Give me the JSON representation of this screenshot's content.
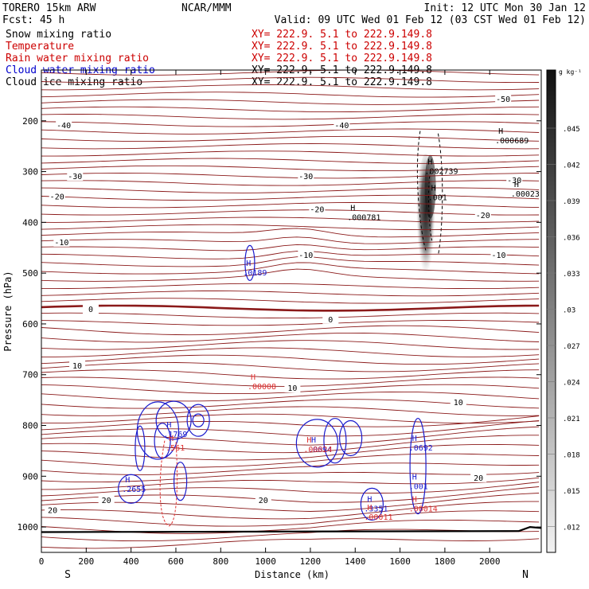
{
  "header": {
    "model": "TORERO   15km ARW",
    "center": "NCAR/MMM",
    "init": "Init: 12 UTC Mon 30 Jan 12",
    "fcst": "Fcst:    45 h",
    "valid": "Valid: 09 UTC Wed 01 Feb 12 (03 CST Wed 01 Feb 12)"
  },
  "fields": [
    {
      "name": "Snow mixing ratio",
      "xy": "XY= 222.9.  5.1 to 222.9.149.8",
      "color": "#000000",
      "xy_color": "#cc0000"
    },
    {
      "name": "Temperature",
      "xy": "XY= 222.9.  5.1 to 222.9.149.8",
      "color": "#cc0000",
      "xy_color": "#cc0000"
    },
    {
      "name": "Rain water mixing ratio",
      "xy": "XY= 222.9.  5.1 to 222.9.149.8",
      "color": "#cc0000",
      "xy_color": "#cc0000"
    },
    {
      "name": "Cloud water mixing ratio",
      "xy": "XY= 222.9.  5.1 to 222.9.149.8",
      "color": "#0000cc",
      "xy_color": "#000000"
    },
    {
      "name": "Cloud ice mixing ratio",
      "xy": "XY= 222.9.  5.1 to 222.9.149.8",
      "color": "#000000",
      "xy_color": "#000000"
    }
  ],
  "chart_data": {
    "type": "vertical-cross-section",
    "xlabel": "Distance (km)",
    "ylabel": "Pressure (hPa)",
    "xlim": [
      0,
      2230
    ],
    "ylim": [
      1050,
      100
    ],
    "x_ticks": [
      0,
      200,
      400,
      600,
      800,
      1000,
      1200,
      1400,
      1600,
      1800,
      2000
    ],
    "y_ticks": [
      200,
      300,
      400,
      500,
      600,
      700,
      800,
      900,
      1000
    ],
    "end_labels": {
      "left": "S",
      "right": "N"
    },
    "colorbar": {
      "unit": "g kg⁻¹",
      "labels": [
        ".045",
        ".042",
        ".039",
        ".036",
        ".033",
        ".03",
        ".027",
        ".024",
        ".021",
        ".018",
        ".015",
        ".012"
      ]
    },
    "temperature_contours": [
      {
        "label": "-50",
        "p": 158,
        "x": 2060
      },
      {
        "label": "-40",
        "p": 210,
        "x": 100
      },
      {
        "label": "-40",
        "p": 210,
        "x": 1340
      },
      {
        "label": "-30",
        "p": 310,
        "x": 150
      },
      {
        "label": "-30",
        "p": 310,
        "x": 1180
      },
      {
        "label": "-30",
        "p": 318,
        "x": 2110
      },
      {
        "label": "-20",
        "p": 350,
        "x": 70
      },
      {
        "label": "-20",
        "p": 375,
        "x": 1230
      },
      {
        "label": "-20",
        "p": 387,
        "x": 1970
      },
      {
        "label": "-10",
        "p": 440,
        "x": 90
      },
      {
        "label": "-10",
        "p": 465,
        "x": 1180
      },
      {
        "label": "-10",
        "p": 465,
        "x": 2040
      },
      {
        "label": "0",
        "p": 572,
        "x": 220
      },
      {
        "label": "0",
        "p": 592,
        "x": 1290
      },
      {
        "label": "10",
        "p": 683,
        "x": 160
      },
      {
        "label": "10",
        "p": 727,
        "x": 1120
      },
      {
        "label": "10",
        "p": 755,
        "x": 1860
      },
      {
        "label": "20",
        "p": 904,
        "x": 1950
      },
      {
        "label": "20",
        "p": 948,
        "x": 290
      },
      {
        "label": "20",
        "p": 968,
        "x": 50
      },
      {
        "label": "20",
        "p": 948,
        "x": 990
      }
    ],
    "maxima_labels": [
      {
        "mark": "H",
        "value": ".000689",
        "x": 2060,
        "p": 232,
        "field": "snow"
      },
      {
        "mark": "H",
        "value": ".002739",
        "x": 1745,
        "p": 292,
        "field": "snow"
      },
      {
        "mark": "H",
        "value": ".001",
        "x": 1760,
        "p": 344,
        "field": "snow"
      },
      {
        "mark": "H",
        "value": ".00023",
        "x": 2130,
        "p": 337,
        "field": "snow"
      },
      {
        "mark": "H",
        "value": ".000781",
        "x": 1400,
        "p": 383,
        "field": "snow"
      },
      {
        "mark": "H",
        "value": ".0189",
        "x": 935,
        "p": 492,
        "field": "cloud_water"
      },
      {
        "mark": "H",
        "value": ".00008",
        "x": 955,
        "p": 716,
        "field": "rain"
      },
      {
        "mark": "H",
        "value": ".1769",
        "x": 580,
        "p": 810,
        "field": "cloud_water"
      },
      {
        "mark": "H",
        "value": ".561",
        "x": 590,
        "p": 837,
        "field": "rain"
      },
      {
        "mark": "H",
        "value": ".0694",
        "x": 1225,
        "p": 840,
        "field": "cloud_water"
      },
      {
        "mark": "H",
        "value": ".00024",
        "x": 1205,
        "p": 840,
        "field": "rain"
      },
      {
        "mark": "H",
        "value": ".0692",
        "x": 1675,
        "p": 837,
        "field": "cloud_water"
      },
      {
        "mark": "H",
        "value": ".2655",
        "x": 395,
        "p": 918,
        "field": "cloud_water"
      },
      {
        "mark": "H",
        "value": ".001",
        "x": 1675,
        "p": 913,
        "field": "cloud_water"
      },
      {
        "mark": "H",
        "value": ".3351",
        "x": 1475,
        "p": 957,
        "field": "cloud_water"
      },
      {
        "mark": "H",
        "value": ".00011",
        "x": 1475,
        "p": 973,
        "field": "rain"
      },
      {
        "mark": "H",
        "value": ".00014",
        "x": 1675,
        "p": 957,
        "field": "rain"
      }
    ]
  },
  "colors": {
    "temperature": "#8b1a1a",
    "zero_isotherm": "#8b1a1a",
    "rain": "#e03030",
    "cloud_water": "#1a1acc",
    "snow": "#000000",
    "ground": "#000000"
  }
}
